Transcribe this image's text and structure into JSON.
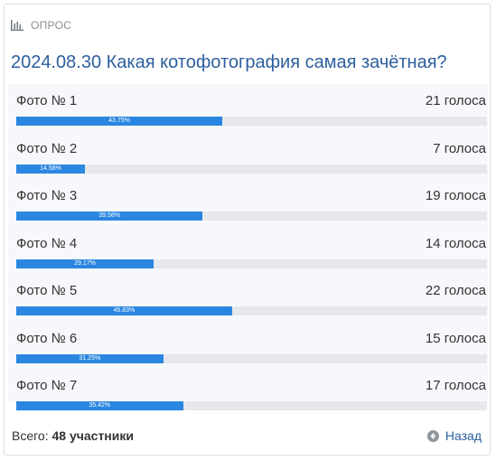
{
  "poll": {
    "header_label": "ОПРОС",
    "title": "2024.08.30 Какая котофотография самая зачётная?",
    "options": [
      {
        "label": "Фото № 1",
        "votes": "21 голоса",
        "percent_text": "43.75%",
        "percent": 43.75
      },
      {
        "label": "Фото № 2",
        "votes": "7 голоса",
        "percent_text": "14.58%",
        "percent": 14.58
      },
      {
        "label": "Фото № 3",
        "votes": "19 голоса",
        "percent_text": "39.58%",
        "percent": 39.58
      },
      {
        "label": "Фото № 4",
        "votes": "14 голоса",
        "percent_text": "29.17%",
        "percent": 29.17
      },
      {
        "label": "Фото № 5",
        "votes": "22 голоса",
        "percent_text": "45.83%",
        "percent": 45.83
      },
      {
        "label": "Фото № 6",
        "votes": "15 голоса",
        "percent_text": "31.25%",
        "percent": 31.25
      },
      {
        "label": "Фото № 7",
        "votes": "17 голоса",
        "percent_text": "35.42%",
        "percent": 35.42
      }
    ],
    "footer": {
      "total_prefix": "Всего:",
      "total_value": "48 участники",
      "back_label": "Назад"
    },
    "icons": {
      "header": "bar-chart-icon",
      "back": "arrow-left-circle-icon"
    },
    "colors": {
      "bar_fill": "#2a86e0",
      "bar_track": "#e6e8ec",
      "title": "#2c5f9e"
    }
  }
}
